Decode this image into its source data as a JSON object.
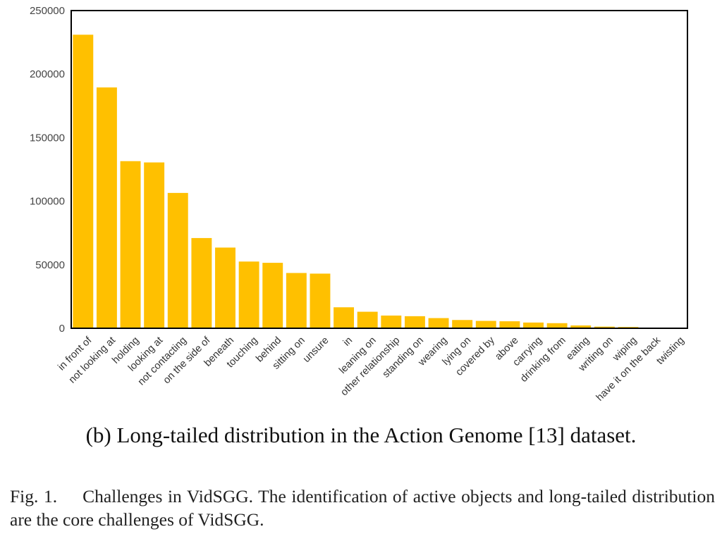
{
  "chart_data": {
    "type": "bar",
    "categories": [
      "in front of",
      "not looking at",
      "holding",
      "looking at",
      "not contacting",
      "on the side of",
      "beneath",
      "touching",
      "behind",
      "sitting on",
      "unsure",
      "in",
      "leaning on",
      "other relationship",
      "standing on",
      "wearing",
      "lying on",
      "covered by",
      "above",
      "carrying",
      "drinking from",
      "eating",
      "writing on",
      "wiping",
      "have it on the back",
      "twisting"
    ],
    "values": [
      231000,
      189500,
      131500,
      130500,
      106500,
      71000,
      63500,
      52500,
      51500,
      43500,
      43000,
      16500,
      13000,
      10000,
      9500,
      8000,
      6500,
      5800,
      5500,
      4500,
      4000,
      2200,
      1300,
      1000,
      300,
      100
    ],
    "yticks": [
      "0",
      "50000",
      "100000",
      "150000",
      "200000",
      "250000"
    ],
    "ylim": [
      0,
      250000
    ],
    "bar_color": "#FFC000",
    "grid": false
  },
  "subcaption": "(b) Long-tailed distribution in the Action Genome [13] dataset.",
  "caption": {
    "figno": "Fig. 1.",
    "text": "Challenges in VidSGG. The identification of active objects and long-tailed distribution are the core challenges of VidSGG."
  }
}
